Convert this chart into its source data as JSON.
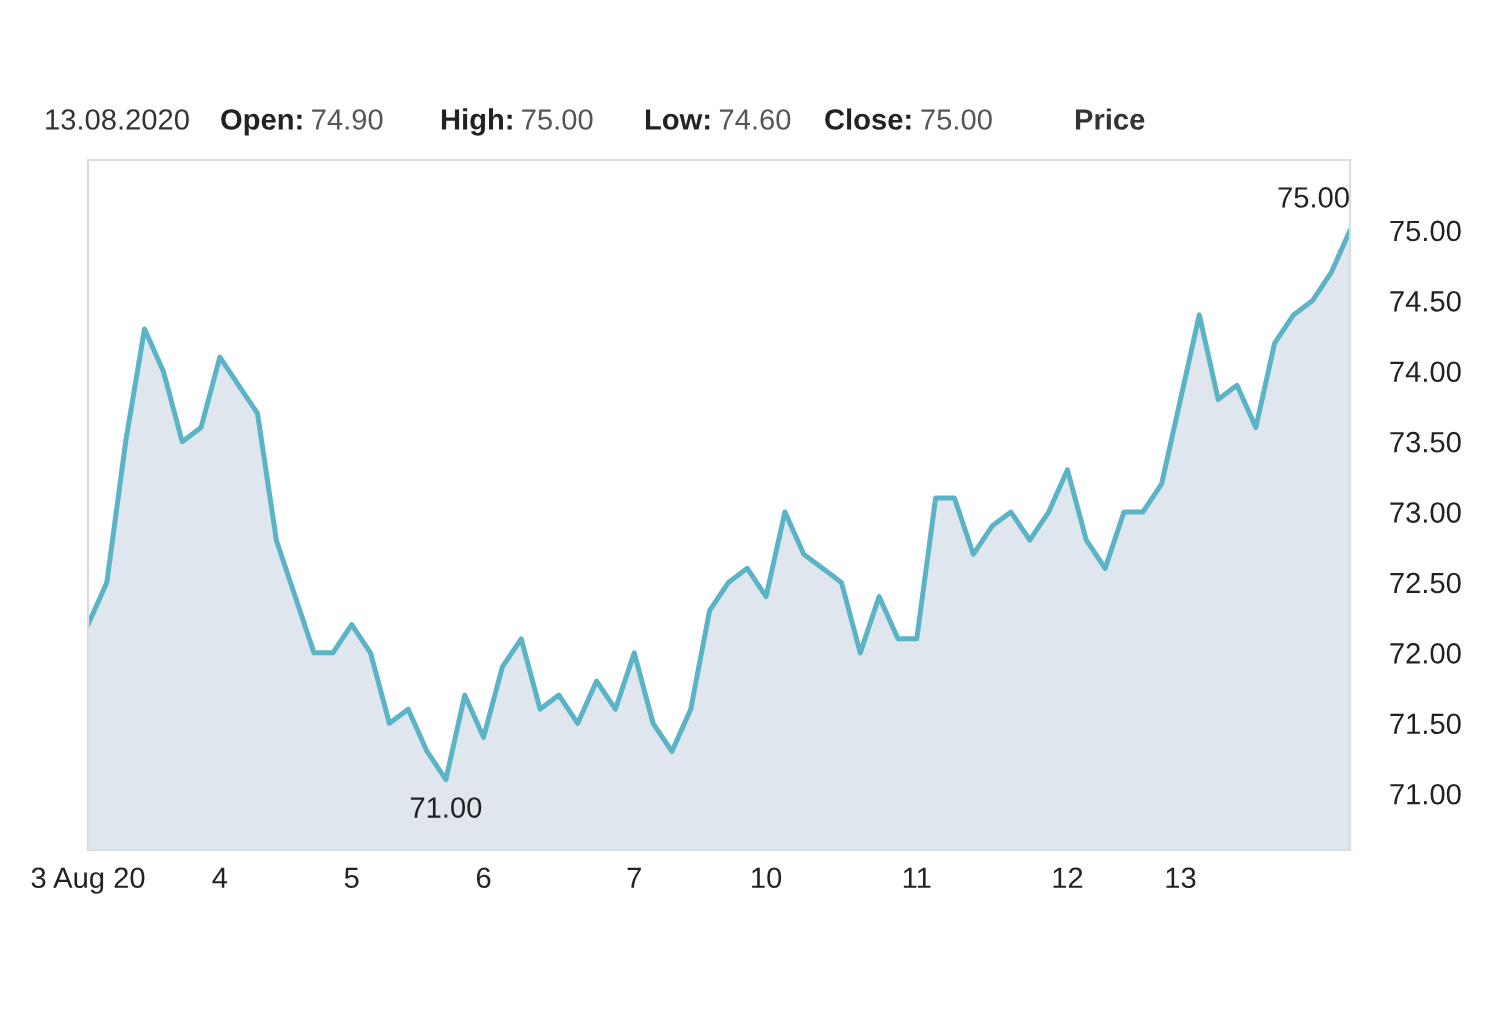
{
  "chart_data": {
    "type": "area",
    "categories": [
      "3 Aug 20",
      null,
      null,
      null,
      null,
      null,
      null,
      "4",
      null,
      null,
      null,
      null,
      null,
      null,
      "5",
      null,
      null,
      null,
      null,
      null,
      null,
      "6",
      null,
      null,
      null,
      null,
      null,
      null,
      null,
      "7",
      null,
      null,
      null,
      null,
      null,
      null,
      "10",
      null,
      null,
      null,
      null,
      null,
      null,
      null,
      "11",
      null,
      null,
      null,
      null,
      null,
      null,
      null,
      "12",
      null,
      null,
      null,
      null,
      null,
      "13",
      null,
      null,
      null,
      null,
      null,
      null,
      null,
      null,
      null
    ],
    "series": [
      {
        "color": "#5ab4c6",
        "values": [
          72.2,
          72.5,
          73.5,
          74.3,
          74.0,
          73.5,
          73.6,
          74.1,
          73.9,
          73.7,
          72.8,
          72.4,
          72.0,
          72.0,
          72.2,
          72.0,
          71.5,
          71.6,
          71.3,
          71.1,
          71.7,
          71.4,
          71.9,
          72.1,
          71.6,
          71.7,
          71.5,
          71.8,
          71.6,
          72.0,
          71.5,
          71.3,
          71.6,
          72.3,
          72.5,
          72.6,
          72.4,
          73.0,
          72.7,
          72.6,
          72.5,
          72.0,
          72.4,
          72.1,
          72.1,
          73.1,
          73.1,
          72.7,
          72.9,
          73.0,
          72.8,
          73.0,
          73.3,
          72.8,
          72.6,
          73.0,
          73.0,
          73.2,
          73.8,
          74.4,
          73.8,
          73.9,
          73.6,
          74.2,
          74.4,
          74.5,
          74.7,
          75.0
        ]
      }
    ],
    "ylim": [
      70.6,
      75.5
    ],
    "yticks": [
      {
        "value": 71,
        "label": "71.00"
      },
      {
        "value": 71.5,
        "label": "71.50"
      },
      {
        "value": 72,
        "label": "72.00"
      },
      {
        "value": 72.5,
        "label": "72.50"
      },
      {
        "value": 73,
        "label": "73.00"
      },
      {
        "value": 73.5,
        "label": "73.50"
      },
      {
        "value": 74,
        "label": "74.00"
      },
      {
        "value": 74.5,
        "label": "74.50"
      },
      {
        "value": 75,
        "label": "75.00"
      }
    ],
    "grid": false,
    "annotations": [
      "13.08.2020",
      "Open: 74.90",
      "High: 75.00",
      "Low: 74.60",
      "Close: 75.00",
      "Price",
      "71.00",
      "75.00"
    ]
  }
}
